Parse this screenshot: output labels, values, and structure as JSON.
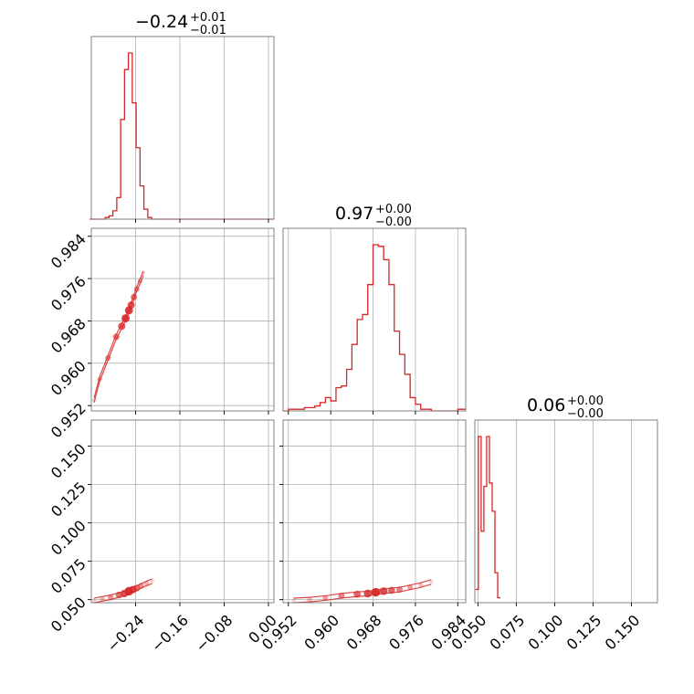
{
  "colors": {
    "accent": "#d62728",
    "frame": "#808080",
    "grid": "#b0b0b0"
  },
  "panels": {
    "p00": {
      "title_main": "−0.24",
      "title_sup": "+0.01",
      "title_sub": "−0.01"
    },
    "p11": {
      "title_main": "0.97",
      "title_sup": "+0.00",
      "title_sub": "−0.00"
    },
    "p22": {
      "title_main": "0.06",
      "title_sup": "+0.00",
      "title_sub": "−0.00"
    }
  },
  "chart_data": [
    {
      "type": "histogram",
      "panel": "p00",
      "parameter_index": 0,
      "xlim": [
        -0.32,
        0.01
      ],
      "x_ticks": [
        -0.24,
        -0.16,
        -0.08,
        0.0
      ],
      "bins": [
        -0.323,
        -0.316,
        -0.309,
        -0.302,
        -0.295,
        -0.288,
        -0.281,
        -0.274,
        -0.267,
        -0.26,
        -0.253,
        -0.246,
        -0.239,
        -0.232,
        -0.225,
        -0.218,
        -0.211,
        -0.204,
        -0.197,
        0.01
      ],
      "values": [
        0,
        0,
        0,
        0,
        1,
        2,
        5,
        13,
        60,
        90,
        100,
        70,
        43,
        20,
        6,
        1,
        0,
        0,
        0
      ]
    },
    {
      "type": "histogram",
      "panel": "p11",
      "parameter_index": 1,
      "xlim": [
        0.951,
        0.9855
      ],
      "x_ticks": [
        0.952,
        0.96,
        0.968,
        0.976,
        0.984
      ],
      "bins": [
        0.951,
        0.952,
        0.953,
        0.954,
        0.955,
        0.956,
        0.957,
        0.958,
        0.959,
        0.96,
        0.961,
        0.962,
        0.963,
        0.964,
        0.965,
        0.966,
        0.967,
        0.968,
        0.969,
        0.97,
        0.971,
        0.972,
        0.973,
        0.974,
        0.975,
        0.976,
        0.977,
        0.978,
        0.979,
        0.98,
        0.981,
        0.982,
        0.983,
        0.984,
        0.9855
      ],
      "values": [
        0,
        1,
        1,
        1,
        2,
        2,
        3,
        5,
        8,
        6,
        14,
        15,
        25,
        40,
        55,
        58,
        76,
        100,
        99,
        91,
        76,
        48,
        34,
        22,
        8,
        4,
        1,
        1,
        0,
        0,
        0,
        0,
        0,
        1
      ]
    },
    {
      "type": "histogram",
      "panel": "p22",
      "parameter_index": 2,
      "xlim": [
        0.048,
        0.167
      ],
      "x_ticks": [
        0.05,
        0.075,
        0.1,
        0.125,
        0.15
      ],
      "bins": [
        0.0485,
        0.0503,
        0.0521,
        0.0539,
        0.0557,
        0.0575,
        0.0593,
        0.0611,
        0.0629,
        0.0647
      ],
      "values": [
        8,
        100,
        43,
        70,
        100,
        72,
        55,
        18,
        3
      ]
    },
    {
      "type": "scatter",
      "panel": "p10",
      "x_index": 0,
      "y_index": 1,
      "xlim": [
        -0.32,
        0.01
      ],
      "ylim": [
        0.951,
        0.9855
      ],
      "x_ticks": [
        -0.24,
        -0.16,
        -0.08,
        0.0
      ],
      "y_ticks": [
        0.952,
        0.96,
        0.968,
        0.976,
        0.984
      ],
      "x": [
        -0.315,
        -0.305,
        -0.29,
        -0.275,
        -0.265,
        -0.258,
        -0.252,
        -0.248,
        -0.243,
        -0.238,
        -0.232,
        -0.226
      ],
      "y": [
        0.953,
        0.957,
        0.961,
        0.965,
        0.967,
        0.9685,
        0.97,
        0.971,
        0.9725,
        0.974,
        0.9755,
        0.977
      ]
    },
    {
      "type": "scatter",
      "panel": "p20",
      "x_index": 0,
      "y_index": 2,
      "xlim": [
        -0.32,
        0.01
      ],
      "ylim": [
        0.048,
        0.167
      ],
      "x_ticks": [
        -0.24,
        -0.16,
        -0.08,
        0.0
      ],
      "y_ticks": [
        0.05,
        0.075,
        0.1,
        0.125,
        0.15
      ],
      "x": [
        -0.315,
        -0.3,
        -0.285,
        -0.27,
        -0.26,
        -0.252,
        -0.245,
        -0.238,
        -0.23,
        -0.22,
        -0.21
      ],
      "y": [
        0.0495,
        0.0505,
        0.0515,
        0.053,
        0.054,
        0.0555,
        0.0565,
        0.0575,
        0.059,
        0.0605,
        0.062
      ]
    },
    {
      "type": "scatter",
      "panel": "p21",
      "x_index": 1,
      "y_index": 2,
      "xlim": [
        0.951,
        0.9855
      ],
      "ylim": [
        0.048,
        0.167
      ],
      "x_ticks": [
        0.952,
        0.96,
        0.968,
        0.976,
        0.984
      ],
      "y_ticks": [
        0.05,
        0.075,
        0.1,
        0.125,
        0.15
      ],
      "x": [
        0.953,
        0.956,
        0.959,
        0.962,
        0.965,
        0.967,
        0.9685,
        0.97,
        0.9715,
        0.973,
        0.975,
        0.977,
        0.979
      ],
      "y": [
        0.0495,
        0.05,
        0.051,
        0.0525,
        0.0535,
        0.054,
        0.0548,
        0.0555,
        0.056,
        0.0565,
        0.058,
        0.0595,
        0.0615
      ]
    }
  ]
}
